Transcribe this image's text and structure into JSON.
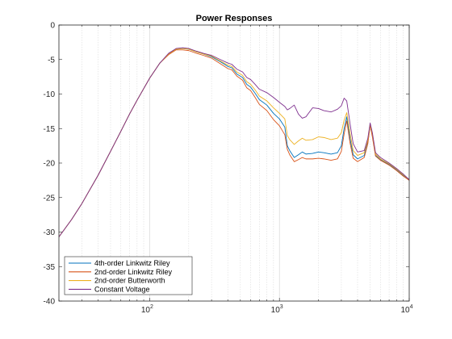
{
  "chart_data": {
    "type": "line",
    "title": "Power Responses",
    "xlabel": "",
    "ylabel": "",
    "xscale": "log",
    "xlim": [
      20,
      10000
    ],
    "ylim": [
      -40,
      0
    ],
    "grid": "x-major-minor",
    "legend_position": "bottom-left",
    "xticks": [
      {
        "value": 100,
        "label": "10",
        "exp": "2"
      },
      {
        "value": 1000,
        "label": "10",
        "exp": "3"
      },
      {
        "value": 10000,
        "label": "10",
        "exp": "4"
      }
    ],
    "yticks": [
      0,
      -5,
      -10,
      -15,
      -20,
      -25,
      -30,
      -35,
      -40
    ],
    "series": [
      {
        "name": "4th-order Linkwitz Riley",
        "color": "#0072BD",
        "x": [
          20,
          25,
          30,
          40,
          50,
          60,
          70,
          80,
          100,
          120,
          140,
          160,
          180,
          200,
          230,
          260,
          300,
          350,
          400,
          430,
          470,
          520,
          560,
          600,
          650,
          700,
          800,
          900,
          1000,
          1100,
          1150,
          1200,
          1300,
          1400,
          1500,
          1600,
          1800,
          2000,
          2200,
          2500,
          2800,
          3000,
          3150,
          3300,
          3500,
          3700,
          4000,
          4500,
          4800,
          5000,
          5200,
          5500,
          6000,
          7000,
          8000,
          9000,
          10000
        ],
        "y": [
          -30.7,
          -28.2,
          -25.9,
          -21.8,
          -18.3,
          -15.4,
          -12.9,
          -10.9,
          -7.7,
          -5.5,
          -4.2,
          -3.5,
          -3.4,
          -3.5,
          -3.9,
          -4.2,
          -4.6,
          -5.3,
          -6.0,
          -6.2,
          -7.1,
          -7.6,
          -8.6,
          -9.0,
          -9.9,
          -10.8,
          -11.6,
          -12.8,
          -13.6,
          -14.8,
          -17.5,
          -18.2,
          -19.2,
          -18.8,
          -18.4,
          -18.7,
          -18.6,
          -18.4,
          -18.5,
          -18.7,
          -18.5,
          -17.5,
          -15.0,
          -13.3,
          -16.5,
          -18.8,
          -19.4,
          -18.9,
          -17.0,
          -14.5,
          -16.0,
          -18.9,
          -19.5,
          -20.2,
          -21.0,
          -21.8,
          -22.5
        ]
      },
      {
        "name": "2nd-order Linkwitz Riley",
        "color": "#D95319",
        "x": [
          20,
          25,
          30,
          40,
          50,
          60,
          70,
          80,
          100,
          120,
          140,
          160,
          180,
          200,
          230,
          260,
          300,
          350,
          400,
          430,
          470,
          520,
          560,
          600,
          650,
          700,
          800,
          900,
          1000,
          1100,
          1150,
          1200,
          1300,
          1400,
          1500,
          1600,
          1800,
          2000,
          2200,
          2500,
          2800,
          3000,
          3150,
          3300,
          3500,
          3700,
          4000,
          4500,
          4800,
          5000,
          5200,
          5500,
          6000,
          7000,
          8000,
          9000,
          10000
        ],
        "y": [
          -30.7,
          -28.2,
          -25.9,
          -21.8,
          -18.3,
          -15.4,
          -12.9,
          -10.9,
          -7.7,
          -5.5,
          -4.3,
          -3.6,
          -3.6,
          -3.7,
          -4.1,
          -4.4,
          -4.8,
          -5.6,
          -6.3,
          -6.5,
          -7.4,
          -8.0,
          -9.1,
          -9.5,
          -10.5,
          -11.5,
          -12.4,
          -13.7,
          -14.6,
          -15.9,
          -18.0,
          -18.8,
          -19.8,
          -19.5,
          -19.2,
          -19.4,
          -19.4,
          -19.3,
          -19.4,
          -19.6,
          -19.4,
          -18.3,
          -15.8,
          -13.9,
          -17.1,
          -19.3,
          -19.8,
          -19.2,
          -17.2,
          -14.5,
          -16.2,
          -19.0,
          -19.6,
          -20.3,
          -21.1,
          -21.9,
          -22.5
        ]
      },
      {
        "name": "2nd-order Butterworth",
        "color": "#EDB120",
        "x": [
          20,
          25,
          30,
          40,
          50,
          60,
          70,
          80,
          100,
          120,
          140,
          160,
          180,
          200,
          230,
          260,
          300,
          350,
          400,
          430,
          470,
          520,
          560,
          600,
          650,
          700,
          800,
          900,
          1000,
          1100,
          1150,
          1200,
          1300,
          1400,
          1500,
          1600,
          1800,
          2000,
          2200,
          2500,
          2800,
          3000,
          3150,
          3300,
          3500,
          3700,
          4000,
          4500,
          4800,
          5000,
          5200,
          5500,
          6000,
          7000,
          8000,
          9000,
          10000
        ],
        "y": [
          -30.7,
          -28.2,
          -25.9,
          -21.8,
          -18.3,
          -15.4,
          -12.9,
          -10.9,
          -7.7,
          -5.5,
          -4.2,
          -3.5,
          -3.4,
          -3.5,
          -3.9,
          -4.2,
          -4.5,
          -5.2,
          -5.8,
          -6.0,
          -6.8,
          -7.3,
          -8.2,
          -8.6,
          -9.4,
          -10.3,
          -11.0,
          -12.0,
          -12.8,
          -13.6,
          -16.0,
          -16.6,
          -17.3,
          -16.8,
          -16.4,
          -16.7,
          -16.6,
          -16.2,
          -16.3,
          -16.6,
          -16.4,
          -15.6,
          -13.8,
          -12.7,
          -15.7,
          -18.2,
          -18.9,
          -18.5,
          -16.7,
          -14.3,
          -15.8,
          -18.7,
          -19.4,
          -20.1,
          -20.9,
          -21.7,
          -22.4
        ]
      },
      {
        "name": "Constant Voltage",
        "color": "#7E2F8E",
        "x": [
          20,
          25,
          30,
          40,
          50,
          60,
          70,
          80,
          100,
          120,
          140,
          160,
          180,
          200,
          230,
          260,
          300,
          350,
          400,
          430,
          470,
          520,
          560,
          600,
          650,
          700,
          800,
          900,
          1000,
          1100,
          1150,
          1200,
          1300,
          1400,
          1500,
          1600,
          1800,
          2000,
          2200,
          2500,
          2800,
          3000,
          3150,
          3300,
          3500,
          3700,
          4000,
          4500,
          4800,
          5000,
          5200,
          5500,
          6000,
          7000,
          8000,
          9000,
          10000
        ],
        "y": [
          -30.7,
          -28.2,
          -25.9,
          -21.8,
          -18.3,
          -15.4,
          -12.9,
          -10.9,
          -7.7,
          -5.5,
          -4.1,
          -3.4,
          -3.3,
          -3.4,
          -3.8,
          -4.1,
          -4.4,
          -5.0,
          -5.5,
          -5.7,
          -6.4,
          -6.8,
          -7.6,
          -7.9,
          -8.6,
          -9.3,
          -9.8,
          -10.5,
          -11.2,
          -11.8,
          -12.3,
          -12.1,
          -11.6,
          -12.9,
          -13.5,
          -13.3,
          -12.0,
          -12.1,
          -12.4,
          -12.6,
          -12.2,
          -11.7,
          -10.6,
          -11.0,
          -14.3,
          -17.2,
          -18.4,
          -18.2,
          -16.4,
          -14.2,
          -15.6,
          -18.5,
          -19.2,
          -20.0,
          -20.8,
          -21.6,
          -22.4
        ]
      }
    ]
  }
}
